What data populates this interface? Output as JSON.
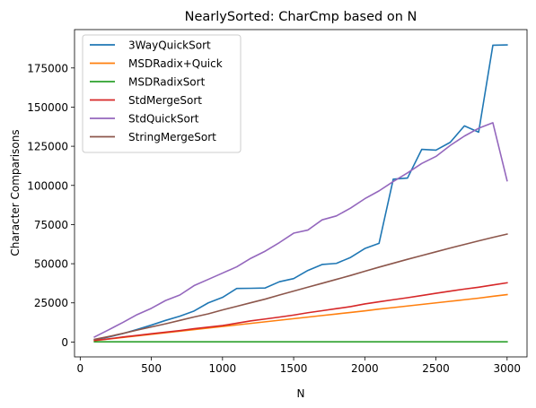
{
  "chart_data": {
    "type": "line",
    "title": "NearlySorted: CharCmp based on N",
    "xlabel": "N",
    "ylabel": "Character Comparisons",
    "xlim": [
      -40,
      3140
    ],
    "ylim": [
      -9500,
      199500
    ],
    "xticks": [
      0,
      500,
      1000,
      1500,
      2000,
      2500,
      3000
    ],
    "yticks": [
      0,
      25000,
      50000,
      75000,
      100000,
      125000,
      150000,
      175000
    ],
    "grid": false,
    "legend_position": "top-left",
    "x": [
      100,
      200,
      300,
      400,
      500,
      600,
      700,
      800,
      900,
      1000,
      1100,
      1200,
      1300,
      1400,
      1500,
      1600,
      1700,
      1800,
      1900,
      2000,
      2100,
      2200,
      2300,
      2400,
      2500,
      2600,
      2700,
      2800,
      2900,
      3000
    ],
    "series": [
      {
        "name": "3WayQuickSort",
        "color": "#1f77b4",
        "values": [
          1500,
          3200,
          5400,
          8000,
          10800,
          13800,
          16500,
          19800,
          25000,
          28500,
          34200,
          34300,
          34500,
          38500,
          40500,
          45700,
          49500,
          50200,
          54000,
          59700,
          63000,
          104000,
          104700,
          123000,
          122500,
          127500,
          138000,
          134000,
          189500,
          189700
        ]
      },
      {
        "name": "MSDRadix+Quick",
        "color": "#ff7f0e",
        "values": [
          900,
          1900,
          2900,
          3900,
          4900,
          5900,
          6900,
          7900,
          8900,
          9900,
          10900,
          11900,
          12900,
          13900,
          14900,
          15900,
          16900,
          17900,
          18900,
          19900,
          21000,
          22000,
          23000,
          24000,
          25000,
          26000,
          27000,
          28000,
          29200,
          30300
        ]
      },
      {
        "name": "MSDRadixSort",
        "color": "#2ca02c",
        "values": [
          100,
          100,
          100,
          100,
          100,
          100,
          100,
          100,
          100,
          100,
          100,
          100,
          100,
          100,
          100,
          100,
          100,
          100,
          100,
          100,
          100,
          100,
          100,
          100,
          100,
          100,
          100,
          100,
          100,
          100
        ]
      },
      {
        "name": "StdMergeSort",
        "color": "#d62728",
        "values": [
          1000,
          2000,
          3200,
          4200,
          5300,
          6300,
          7300,
          8500,
          9500,
          10500,
          12000,
          13500,
          14700,
          15900,
          17200,
          18700,
          20000,
          21300,
          22600,
          24300,
          25700,
          27000,
          28300,
          29700,
          31100,
          32500,
          33800,
          35000,
          36400,
          37800
        ]
      },
      {
        "name": "StdQuickSort",
        "color": "#9467bd",
        "values": [
          3200,
          7800,
          12500,
          17500,
          21500,
          26500,
          30000,
          36000,
          40000,
          44000,
          48000,
          53500,
          58000,
          63500,
          69500,
          71500,
          78000,
          80500,
          85500,
          91500,
          96500,
          102500,
          108000,
          114000,
          118500,
          125500,
          131500,
          136500,
          140000,
          103000
        ]
      },
      {
        "name": "StringMergeSort",
        "color": "#8c564b",
        "values": [
          1700,
          3500,
          5500,
          7600,
          9600,
          11600,
          13800,
          16000,
          18000,
          20500,
          22800,
          25100,
          27400,
          30000,
          32500,
          35000,
          37500,
          40000,
          42500,
          45200,
          47800,
          50300,
          52800,
          55200,
          57600,
          60000,
          62300,
          64600,
          66800,
          68900
        ]
      }
    ]
  }
}
